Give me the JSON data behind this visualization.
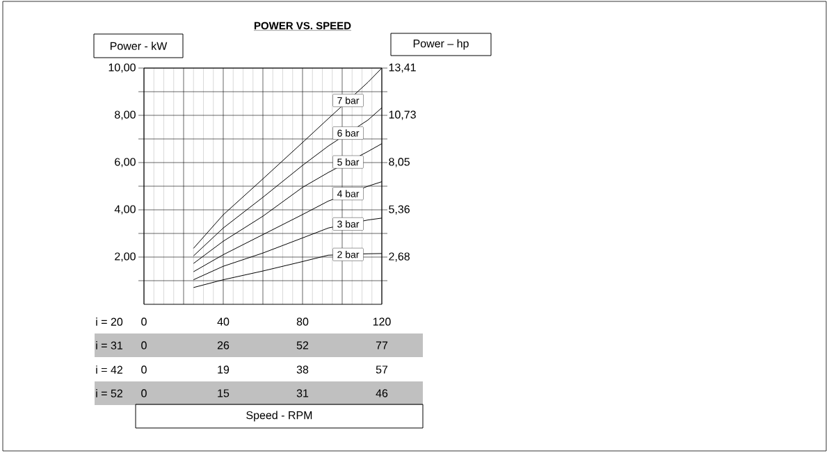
{
  "chart_data": {
    "type": "line",
    "title": "POWER VS. SPEED",
    "ylabel": "Power - kW",
    "y2label": "Power – hp",
    "x": [
      25,
      40,
      60,
      80,
      93,
      113,
      120
    ],
    "xlim": [
      0,
      120
    ],
    "xticks": [
      0,
      {
        "value": 20,
        "label": null
      },
      40,
      {
        "value": 60,
        "label": null
      },
      80,
      {
        "value": 100,
        "label": null
      },
      120
    ],
    "x2lim": [
      0,
      77.4
    ],
    "x2ticks": [
      0,
      {
        "value": 25.8,
        "label": "26"
      },
      {
        "value": 51.6,
        "label": "52"
      },
      {
        "value": 77.4,
        "label": "77"
      }
    ],
    "ylim": [
      0,
      10
    ],
    "yticks": [
      {
        "value": 1,
        "label": null
      },
      {
        "value": 2,
        "label": "2,00"
      },
      {
        "value": 3,
        "label": null
      },
      {
        "value": 4,
        "label": "4,00"
      },
      {
        "value": 5,
        "label": null
      },
      {
        "value": 6,
        "label": "6,00"
      },
      {
        "value": 7,
        "label": null
      },
      {
        "value": 8,
        "label": "8,00"
      },
      {
        "value": 9,
        "label": null
      },
      {
        "value": 10,
        "label": "10,00"
      }
    ],
    "y2lim": [
      0,
      13.41
    ],
    "y2ticks": [
      {
        "value": 2.68,
        "label": "2,68"
      },
      {
        "value": 5.36,
        "label": "5,36"
      },
      {
        "value": 8.05,
        "label": "8,05"
      },
      {
        "value": 10.73,
        "label": "10,73"
      },
      {
        "value": 13.41,
        "label": "13,41"
      }
    ],
    "series": [
      {
        "name": "7 bar",
        "color": "#000000",
        "values": [
          2.37,
          3.79,
          5.31,
          6.85,
          7.86,
          9.4,
          10.0
        ]
      },
      {
        "name": "6 bar",
        "color": "#000000",
        "values": [
          2.05,
          3.23,
          4.53,
          5.88,
          6.7,
          7.8,
          8.32
        ]
      },
      {
        "name": "5 bar",
        "color": "#000000",
        "values": [
          1.73,
          2.67,
          3.73,
          4.95,
          5.58,
          6.47,
          6.8
        ]
      },
      {
        "name": "4 bar",
        "color": "#000000",
        "values": [
          1.38,
          2.1,
          2.95,
          3.8,
          4.37,
          5.0,
          5.19
        ]
      },
      {
        "name": "3 bar",
        "color": "#000000",
        "values": [
          1.04,
          1.61,
          2.17,
          2.81,
          3.23,
          3.57,
          3.65
        ]
      },
      {
        "name": "2 bar",
        "color": "#000000",
        "values": [
          0.71,
          1.04,
          1.41,
          1.81,
          2.08,
          2.14,
          2.15
        ]
      }
    ],
    "annotations": [
      "i = 20",
      "i = 31",
      "i = 42",
      "0",
      "19",
      "38",
      "57",
      "i = 52",
      "0",
      "15",
      "31",
      "46",
      "Speed - RPM"
    ],
    "grid": true,
    "legend": "right",
    "marker": "none",
    "line_style": "solid"
  }
}
